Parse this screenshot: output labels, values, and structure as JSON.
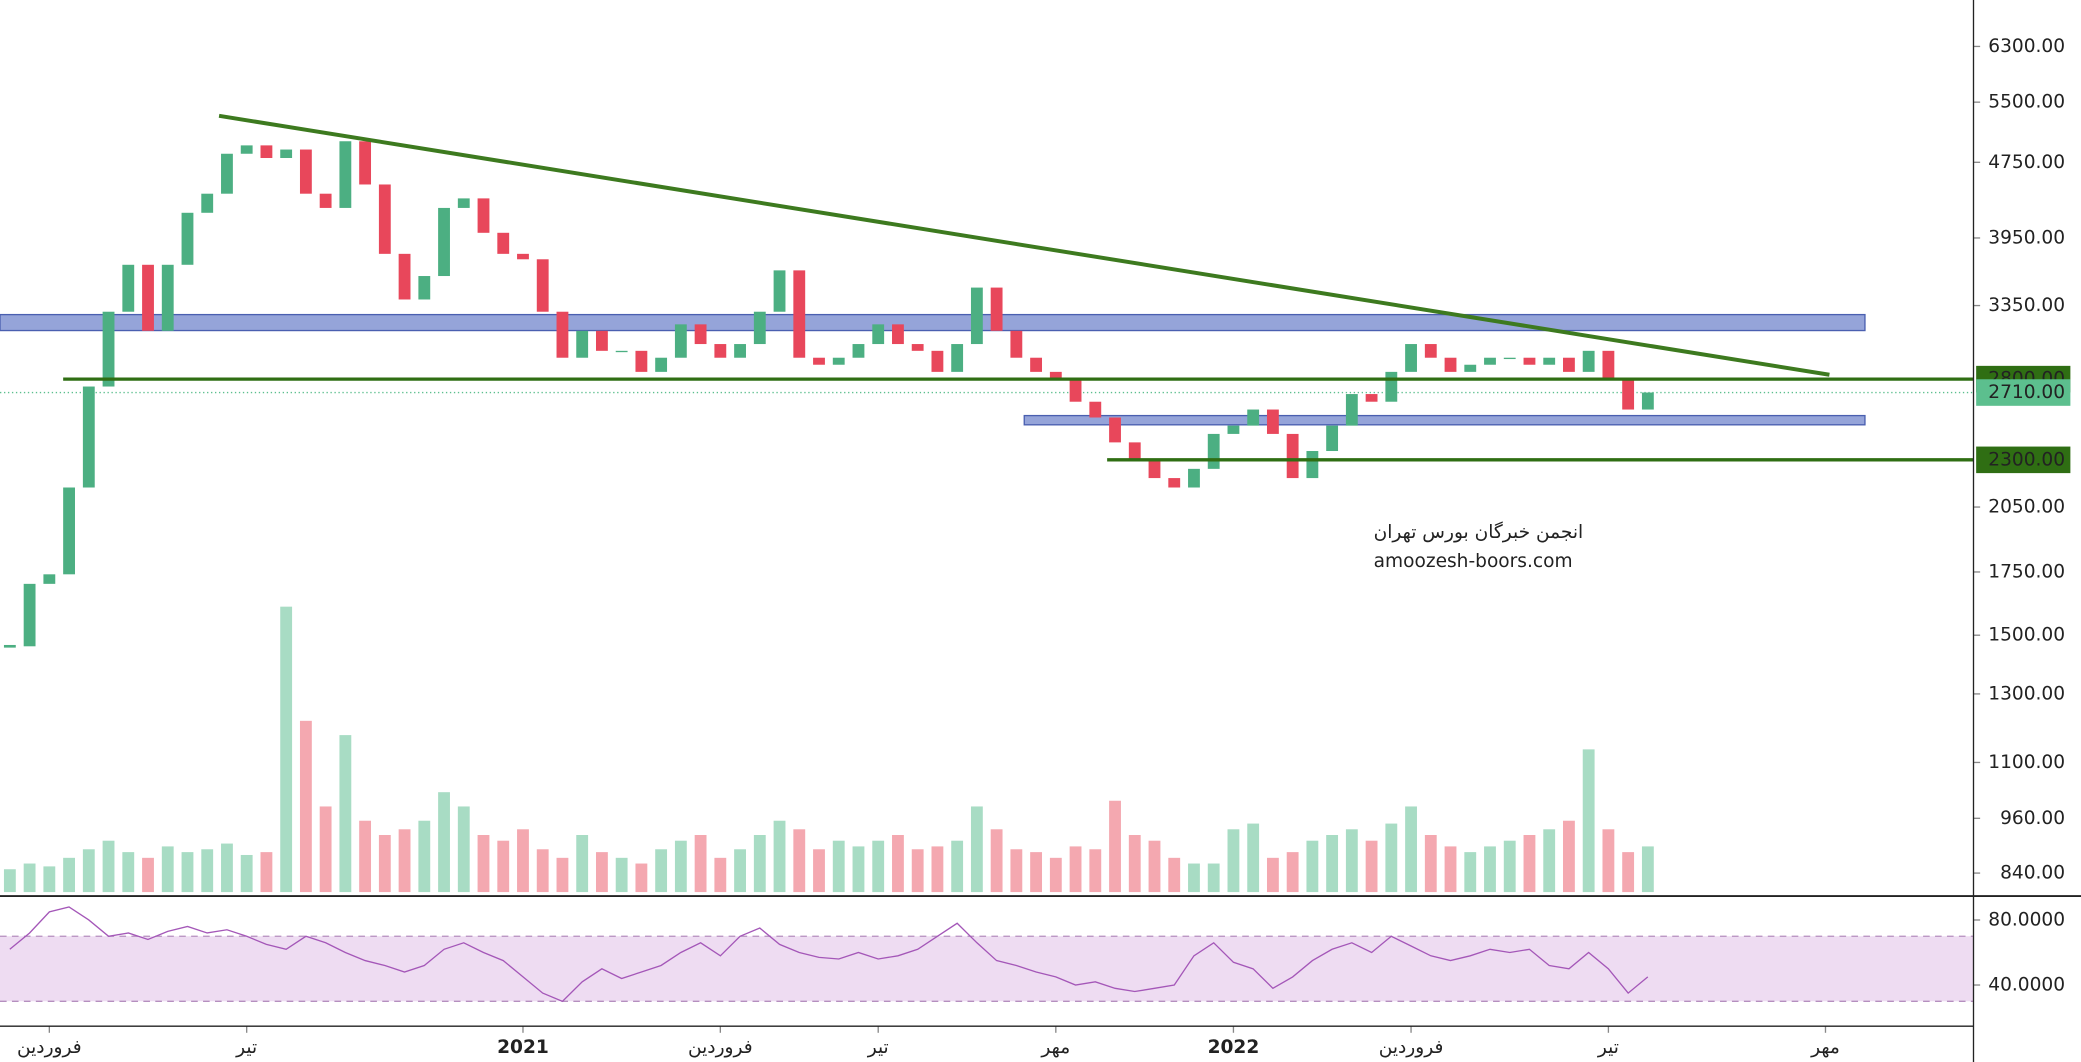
{
  "chart_data": [
    {
      "type": "candlestick",
      "values": [
        1460,
        1700,
        1740,
        2150,
        2750,
        3300,
        3700,
        3150,
        3700,
        4200,
        4400,
        4850,
        4950,
        4800,
        4900,
        4400,
        4250,
        5000,
        4500,
        3800,
        3400,
        3600,
        4250,
        4350,
        4000,
        3800,
        3750,
        3300,
        2950,
        3150,
        3000,
        3000,
        2850,
        2950,
        3200,
        3050,
        2950,
        3050,
        3300,
        3650,
        2950,
        2900,
        2950,
        3050,
        3200,
        3050,
        3000,
        2850,
        3050,
        3500,
        3150,
        2950,
        2850,
        2800,
        2650,
        2550,
        2400,
        2300,
        2200,
        2150,
        2250,
        2450,
        2500,
        2600,
        2450,
        2200,
        2350,
        2500,
        2700,
        2650,
        2850,
        3050,
        2950,
        2850,
        2900,
        2950,
        2950,
        2900,
        2950,
        2850,
        3000,
        2800,
        2600,
        2710,
        null,
        null,
        null,
        null,
        null,
        null,
        null,
        null,
        null,
        null,
        null,
        null,
        null,
        null,
        null,
        null
      ],
      "up_color": "#4caf82",
      "down_color": "#e8475b",
      "ylim": [
        802,
        7055
      ],
      "log_scale": true,
      "yticks": [
        {
          "value": 6300,
          "label": "6300.00"
        },
        {
          "value": 5500,
          "label": "5500.00"
        },
        {
          "value": 4750,
          "label": "4750.00"
        },
        {
          "value": 3950,
          "label": "3950.00"
        },
        {
          "value": 3350,
          "label": "3350.00"
        },
        {
          "value": 2050,
          "label": "2050.00"
        },
        {
          "value": 1750,
          "label": "1750.00"
        },
        {
          "value": 1500,
          "label": "1500.00"
        },
        {
          "value": 1300,
          "label": "1300.00"
        },
        {
          "value": 1100,
          "label": "1100.00"
        },
        {
          "value": 960,
          "label": "960.00"
        },
        {
          "value": 840,
          "label": "840.00"
        }
      ],
      "volume": {
        "values": [
          8,
          10,
          9,
          12,
          15,
          18,
          14,
          12,
          16,
          14,
          15,
          17,
          13,
          14,
          100,
          60,
          30,
          55,
          25,
          20,
          22,
          25,
          35,
          30,
          20,
          18,
          22,
          15,
          12,
          20,
          14,
          12,
          10,
          15,
          18,
          20,
          12,
          15,
          20,
          25,
          22,
          15,
          18,
          16,
          18,
          20,
          15,
          16,
          18,
          30,
          22,
          15,
          14,
          12,
          16,
          15,
          32,
          20,
          18,
          12,
          10,
          10,
          22,
          24,
          12,
          14,
          18,
          20,
          22,
          18,
          24,
          30,
          20,
          16,
          14,
          16,
          18,
          20,
          22,
          25,
          50,
          22,
          14,
          16,
          null,
          null,
          null,
          null,
          null,
          null,
          null,
          null,
          null,
          null,
          null,
          null,
          null,
          null,
          null,
          null
        ],
        "ylim": [
          0,
          100
        ],
        "up_color": "#a8dcc4",
        "down_color": "#f4a8b0"
      },
      "trendline": {
        "x": [
          10.6,
          92.2
        ],
        "y": [
          5320,
          2830
        ],
        "color": "#3d7a1f"
      },
      "zones": [
        {
          "x": [
            -0.5,
            94
          ],
          "y": [
            3152,
            3277
          ]
        },
        {
          "x": [
            51.4,
            94
          ],
          "y": [
            2505,
            2562
          ]
        }
      ],
      "zone_color": "#7185cc",
      "levels": [
        {
          "value": 2800,
          "label": "2800.00",
          "x": 2.7,
          "color": "#2f6e13"
        },
        {
          "value": 2300,
          "label": "2300.00",
          "x": 55.6,
          "color": "#2f6e13"
        }
      ],
      "last_price": {
        "value": 2710,
        "label": "2710.00",
        "color": "#5cbf8e"
      },
      "annotations": [
        "انجمن خبرگان بورس تهران",
        "amoozesh-boors.com"
      ],
      "annotation_color": "#3a7a1a"
    },
    {
      "type": "line",
      "categories": [
        null,
        null,
        "فروردین",
        null,
        null,
        null,
        null,
        null,
        null,
        null,
        null,
        null,
        "تیر",
        null,
        null,
        null,
        null,
        null,
        null,
        null,
        null,
        null,
        null,
        null,
        null,
        null,
        "2021",
        null,
        null,
        null,
        null,
        null,
        null,
        null,
        null,
        null,
        "فروردین",
        null,
        null,
        null,
        null,
        null,
        null,
        null,
        "تیر",
        null,
        null,
        null,
        null,
        null,
        null,
        null,
        null,
        "مهر",
        null,
        null,
        null,
        null,
        null,
        null,
        null,
        null,
        "2022",
        null,
        null,
        null,
        null,
        null,
        null,
        null,
        null,
        "فروردین",
        null,
        null,
        null,
        null,
        null,
        null,
        null,
        null,
        null,
        "تیر",
        null,
        null,
        null,
        null,
        null,
        null,
        null,
        null,
        null,
        null,
        "مهر",
        null,
        null,
        null,
        null,
        null,
        null,
        null
      ],
      "values": [
        62,
        72,
        85,
        88,
        80,
        70,
        72,
        68,
        73,
        76,
        72,
        74,
        70,
        65,
        62,
        70,
        66,
        60,
        55,
        52,
        48,
        52,
        62,
        66,
        60,
        55,
        45,
        35,
        30,
        42,
        50,
        44,
        48,
        52,
        60,
        66,
        58,
        70,
        75,
        65,
        60,
        57,
        56,
        60,
        56,
        58,
        62,
        70,
        78,
        66,
        55,
        52,
        48,
        45,
        40,
        42,
        38,
        36,
        38,
        40,
        58,
        66,
        54,
        50,
        38,
        45,
        55,
        62,
        66,
        60,
        70,
        64,
        58,
        55,
        58,
        62,
        60,
        62,
        52,
        50,
        60,
        50,
        35,
        45,
        null,
        null,
        null,
        null,
        null,
        null,
        null,
        null,
        null,
        null,
        null,
        null,
        null,
        null,
        null,
        null
      ],
      "color": "#a457b8",
      "ylim": [
        14.7,
        93.9
      ],
      "yticks": [
        {
          "value": 80,
          "label": "80.0000"
        },
        {
          "value": 40,
          "label": "40.0000"
        }
      ],
      "band": [
        30,
        70
      ],
      "band_color": "#eedcf2"
    }
  ]
}
